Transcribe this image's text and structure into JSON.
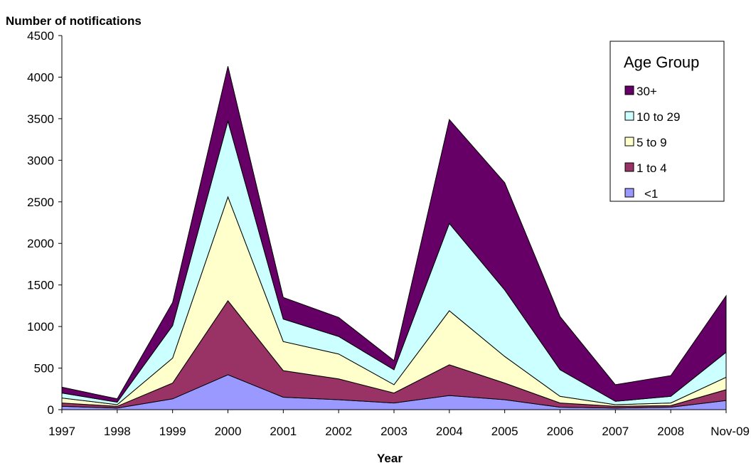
{
  "chart_data": {
    "type": "area",
    "stacked": true,
    "ylabel": "Number of notifications",
    "xlabel": "Year",
    "ylim": [
      0,
      4500
    ],
    "yticks": [
      0,
      500,
      1000,
      1500,
      2000,
      2500,
      3000,
      3500,
      4000,
      4500
    ],
    "categories": [
      "1997",
      "1998",
      "1999",
      "2000",
      "2001",
      "2002",
      "2003",
      "2004",
      "2005",
      "2006",
      "2007",
      "2008",
      "Nov-09"
    ],
    "legend": {
      "title": "Age Group",
      "placement": "top-right"
    },
    "grid": false,
    "series": [
      {
        "name": "<1",
        "color": "#9999ff",
        "values": [
          40,
          20,
          130,
          420,
          150,
          120,
          80,
          170,
          120,
          30,
          20,
          30,
          110
        ]
      },
      {
        "name": "1 to 4",
        "color": "#993366",
        "values": [
          40,
          20,
          190,
          890,
          320,
          250,
          120,
          370,
          200,
          50,
          20,
          20,
          130
        ]
      },
      {
        "name": "5 to 9",
        "color": "#ffffcc",
        "values": [
          60,
          20,
          300,
          1250,
          350,
          300,
          100,
          650,
          320,
          80,
          20,
          30,
          150
        ]
      },
      {
        "name": "10 to 29",
        "color": "#ccffff",
        "values": [
          60,
          30,
          390,
          910,
          270,
          210,
          180,
          1050,
          800,
          320,
          40,
          80,
          300
        ]
      },
      {
        "name": "30+",
        "color": "#660066",
        "values": [
          70,
          40,
          280,
          660,
          260,
          230,
          110,
          1250,
          1290,
          640,
          200,
          250,
          680
        ]
      }
    ]
  }
}
